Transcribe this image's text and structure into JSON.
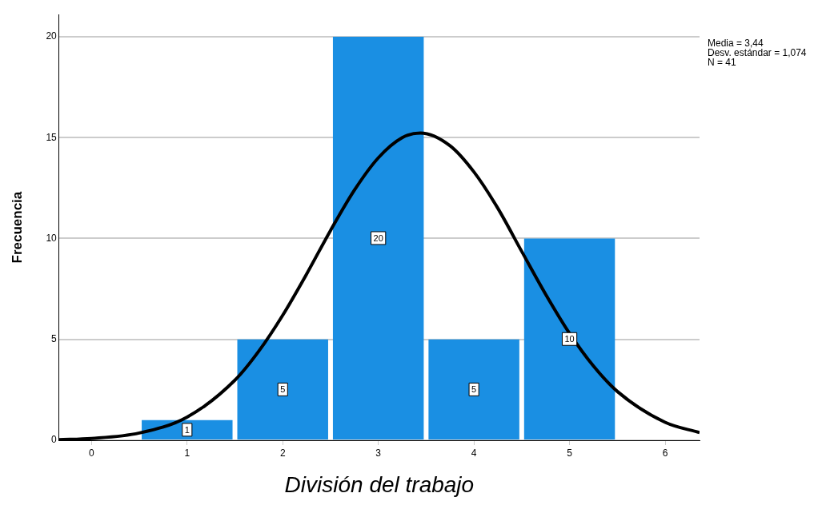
{
  "chart_data": {
    "type": "histogram",
    "xlabel": "División del trabajo",
    "ylabel": "Frecuencia",
    "bins": [
      0.5,
      1.5,
      2.5,
      3.5,
      4.5,
      5.5
    ],
    "values": [
      1,
      5,
      20,
      5,
      10
    ],
    "color": "#1a8fe3",
    "xlim": [
      -0.34,
      6.36
    ],
    "xticks": [
      0,
      1,
      2,
      3,
      4,
      5,
      6
    ],
    "ylim": [
      0,
      21.1
    ],
    "yticks": [
      0,
      5,
      10,
      15,
      20
    ],
    "grid": "y",
    "value_labels": [
      "1",
      "5",
      "20",
      "5",
      "10"
    ],
    "legend": false,
    "annotations": [
      "Media = 3,44",
      "Desv. estándar = 1,074",
      "N = 41"
    ],
    "series": [
      {
        "type": "line",
        "color": "#000000",
        "marker": "none",
        "x": [
          -0.34,
          0,
          0.5,
          1,
          1.5,
          1.75,
          2,
          2.25,
          2.5,
          2.75,
          3,
          3.25,
          3.44,
          3.75,
          4,
          4.25,
          4.5,
          4.75,
          5,
          5.25,
          5.5,
          6,
          6.36
        ],
        "values": [
          0.03,
          0.09,
          0.36,
          1.15,
          2.98,
          4.42,
          6.2,
          8.24,
          10.4,
          12.4,
          14.0,
          15.0,
          15.23,
          14.6,
          13.3,
          11.5,
          9.36,
          7.24,
          5.3,
          3.68,
          2.42,
          0.89,
          0.38
        ]
      }
    ]
  }
}
